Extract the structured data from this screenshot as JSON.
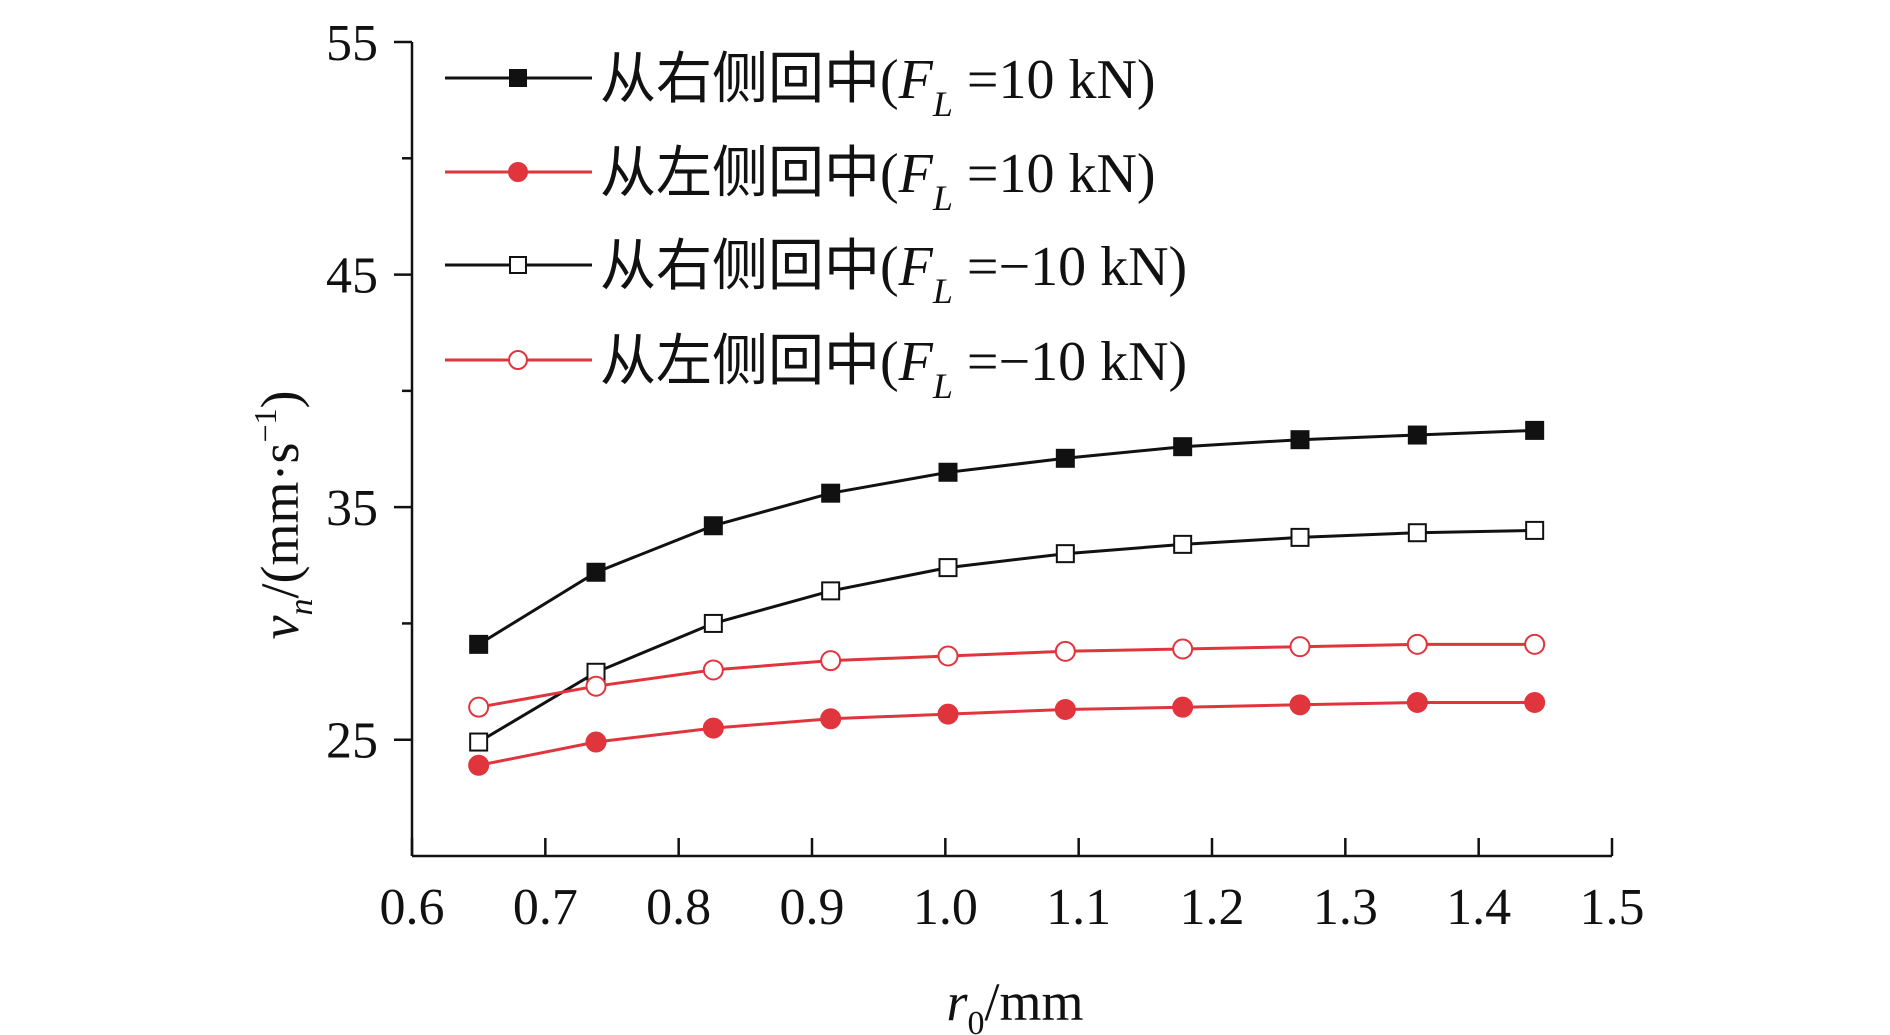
{
  "chart_data": {
    "type": "line",
    "title": "",
    "xlabel": "r",
    "xlabel_sub": "0",
    "xlabel_unit": "/mm",
    "ylabel": "v",
    "ylabel_sub": "n",
    "ylabel_unit": "/(mm·s",
    "ylabel_sup": "−1",
    "ylabel_close": ")",
    "xlim": [
      0.6,
      1.5
    ],
    "ylim": [
      20,
      55
    ],
    "xticks": [
      "0.6",
      "0.7",
      "0.8",
      "0.9",
      "1.0",
      "1.1",
      "1.2",
      "1.3",
      "1.4",
      "1.5"
    ],
    "yticks": [
      "25",
      "35",
      "45",
      "55"
    ],
    "x": [
      0.65,
      0.738,
      0.826,
      0.914,
      1.002,
      1.09,
      1.178,
      1.266,
      1.354,
      1.442
    ],
    "series": [
      {
        "name": "从右侧回中(",
        "name_F": "F",
        "name_sub": "L",
        "name_tail": " =10 kN)",
        "color": "#111111",
        "marker": "square-filled",
        "values": [
          29.1,
          32.2,
          34.2,
          35.6,
          36.5,
          37.1,
          37.6,
          37.9,
          38.1,
          38.3
        ]
      },
      {
        "name": "从左侧回中(",
        "name_F": "F",
        "name_sub": "L",
        "name_tail": " =10 kN)",
        "color": "#e0353d",
        "marker": "circle-filled",
        "values": [
          23.9,
          24.9,
          25.5,
          25.9,
          26.1,
          26.3,
          26.4,
          26.5,
          26.6,
          26.6
        ]
      },
      {
        "name": "从右侧回中(",
        "name_F": "F",
        "name_sub": "L",
        "name_tail": " =−10 kN)",
        "color": "#111111",
        "marker": "square-open",
        "values": [
          24.9,
          27.9,
          30.0,
          31.4,
          32.4,
          33.0,
          33.4,
          33.7,
          33.9,
          34.0
        ]
      },
      {
        "name": "从左侧回中(",
        "name_F": "F",
        "name_sub": "L",
        "name_tail": " =−10 kN)",
        "color": "#e0353d",
        "marker": "circle-open",
        "values": [
          26.4,
          27.3,
          28.0,
          28.4,
          28.6,
          28.8,
          28.9,
          29.0,
          29.1,
          29.1
        ]
      }
    ],
    "legend_position": "top-left"
  }
}
